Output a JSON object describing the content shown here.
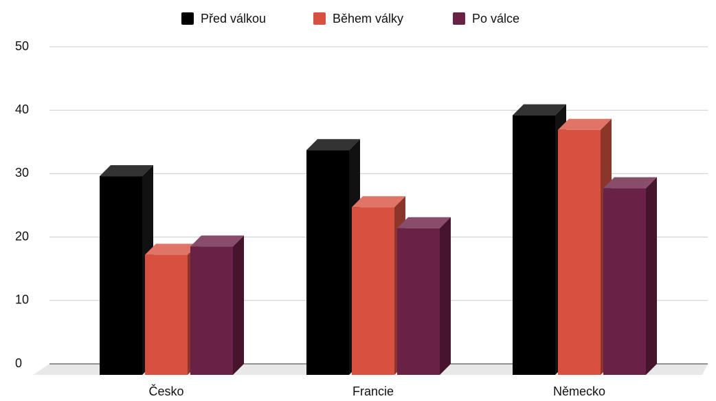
{
  "chart_data": {
    "type": "bar3d",
    "categories": [
      "Česko",
      "Francie",
      "Německo"
    ],
    "series": [
      {
        "name": "Před válkou",
        "color": "#000000",
        "values": [
          29.6,
          33.7,
          39.2
        ]
      },
      {
        "name": "Během války",
        "color": "#d85140",
        "values": [
          17.2,
          24.7,
          36.9
        ]
      },
      {
        "name": "Po válce",
        "color": "#6a2146",
        "values": [
          18.5,
          21.4,
          27.7
        ]
      }
    ],
    "ylim": [
      0,
      50
    ],
    "yticks": [
      0,
      10,
      20,
      30,
      40,
      50
    ],
    "grid": true,
    "legend": "top"
  }
}
